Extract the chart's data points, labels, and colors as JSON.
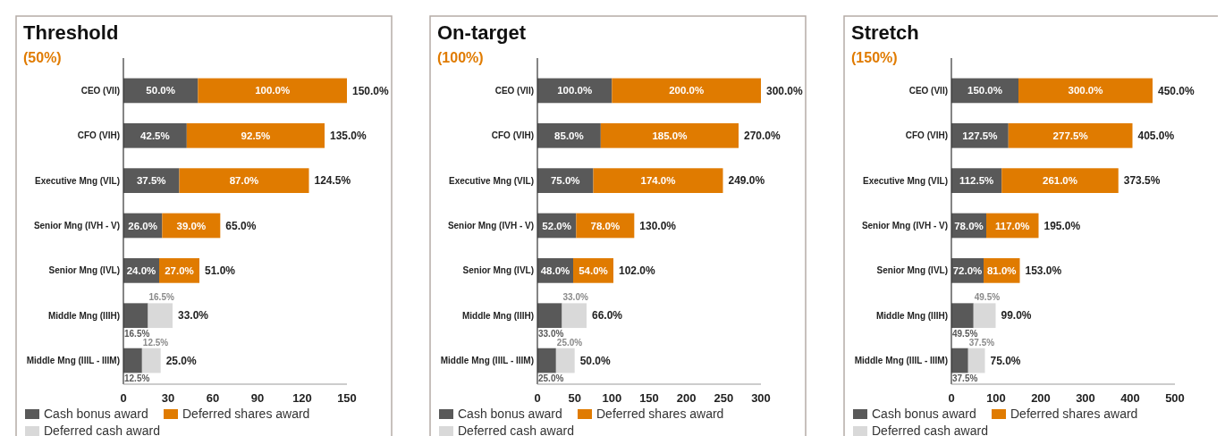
{
  "chart_data": [
    {
      "type": "bar",
      "orientation": "horizontal",
      "stacked": true,
      "title": "Threshold",
      "subtitle": "(50%)",
      "categories": [
        "CEO (VII)",
        "CFO (VIH)",
        "Executive Mng (VIL)",
        "Senior Mng (IVH - V)",
        "Senior Mng (IVL)",
        "Middle Mng (IIIH)",
        "Middle Mng (IIIL - IIIM)"
      ],
      "xlim": [
        0,
        150
      ],
      "xticks": [
        0,
        30,
        60,
        90,
        120,
        150
      ],
      "legend": "bottom",
      "grid": false,
      "series": [
        {
          "name": "Cash bonus award",
          "color": "#595959",
          "values": [
            50,
            42.5,
            37.5,
            26,
            24,
            16.5,
            12.5
          ],
          "value_labels": [
            "50.0%",
            "42.5%",
            "37.5%",
            "26.0%",
            "24.0%",
            "16.5%",
            "12.5%"
          ]
        },
        {
          "name": "Deferred shares award",
          "color": "#e07b00",
          "values": [
            100,
            92.5,
            87,
            39,
            27,
            null,
            null
          ],
          "value_labels": [
            "100.0%",
            "92.5%",
            "87.0%",
            "39.0%",
            "27.0%",
            null,
            null
          ]
        },
        {
          "name": "Deferred cash award",
          "color": "#d9d9d9",
          "values": [
            null,
            null,
            null,
            null,
            null,
            16.5,
            12.5
          ],
          "value_labels": [
            null,
            null,
            null,
            null,
            null,
            "16.5%",
            "12.5%"
          ]
        }
      ],
      "totals": [
        "150.0%",
        "135.0%",
        "124.5%",
        "65.0%",
        "51.0%",
        "33.0%",
        "25.0%"
      ]
    },
    {
      "type": "bar",
      "orientation": "horizontal",
      "stacked": true,
      "title": "On-target",
      "subtitle": "(100%)",
      "categories": [
        "CEO (VII)",
        "CFO (VIH)",
        "Executive Mng (VIL)",
        "Senior Mng (IVH - V)",
        "Senior Mng (IVL)",
        "Middle Mng (IIIH)",
        "Middle Mng (IIIL - IIIM)"
      ],
      "xlim": [
        0,
        300
      ],
      "xticks": [
        0,
        50,
        100,
        150,
        200,
        250,
        300
      ],
      "legend": "bottom",
      "grid": false,
      "series": [
        {
          "name": "Cash bonus award",
          "color": "#595959",
          "values": [
            100,
            85,
            75,
            52,
            48,
            33,
            25
          ],
          "value_labels": [
            "100.0%",
            "85.0%",
            "75.0%",
            "52.0%",
            "48.0%",
            "33.0%",
            "25.0%"
          ]
        },
        {
          "name": "Deferred shares award",
          "color": "#e07b00",
          "values": [
            200,
            185,
            174,
            78,
            54,
            null,
            null
          ],
          "value_labels": [
            "200.0%",
            "185.0%",
            "174.0%",
            "78.0%",
            "54.0%",
            null,
            null
          ]
        },
        {
          "name": "Deferred cash award",
          "color": "#d9d9d9",
          "values": [
            null,
            null,
            null,
            null,
            null,
            33,
            25
          ],
          "value_labels": [
            null,
            null,
            null,
            null,
            null,
            "33.0%",
            "25.0%"
          ]
        }
      ],
      "totals": [
        "300.0%",
        "270.0%",
        "249.0%",
        "130.0%",
        "102.0%",
        "66.0%",
        "50.0%"
      ]
    },
    {
      "type": "bar",
      "orientation": "horizontal",
      "stacked": true,
      "title": "Stretch",
      "subtitle": "(150%)",
      "categories": [
        "CEO (VII)",
        "CFO (VIH)",
        "Executive Mng (VIL)",
        "Senior Mng (IVH - V)",
        "Senior Mng (IVL)",
        "Middle Mng (IIIH)",
        "Middle Mng (IIIL - IIIM)"
      ],
      "xlim": [
        0,
        500
      ],
      "xticks": [
        0,
        100,
        200,
        300,
        400,
        500
      ],
      "legend": "bottom",
      "grid": false,
      "series": [
        {
          "name": "Cash bonus award",
          "color": "#595959",
          "values": [
            150,
            127.5,
            112.5,
            78,
            72,
            49.5,
            37.5
          ],
          "value_labels": [
            "150.0%",
            "127.5%",
            "112.5%",
            "78.0%",
            "72.0%",
            "49.5%",
            "37.5%"
          ]
        },
        {
          "name": "Deferred shares award",
          "color": "#e07b00",
          "values": [
            300,
            277.5,
            261,
            117,
            81,
            null,
            null
          ],
          "value_labels": [
            "300.0%",
            "277.5%",
            "261.0%",
            "117.0%",
            "81.0%",
            null,
            null
          ]
        },
        {
          "name": "Deferred cash award",
          "color": "#d9d9d9",
          "values": [
            null,
            null,
            null,
            null,
            null,
            49.5,
            37.5
          ],
          "value_labels": [
            null,
            null,
            null,
            null,
            null,
            "49.5%",
            "37.5%"
          ]
        }
      ],
      "totals": [
        "450.0%",
        "405.0%",
        "373.5%",
        "195.0%",
        "153.0%",
        "99.0%",
        "75.0%"
      ]
    }
  ]
}
